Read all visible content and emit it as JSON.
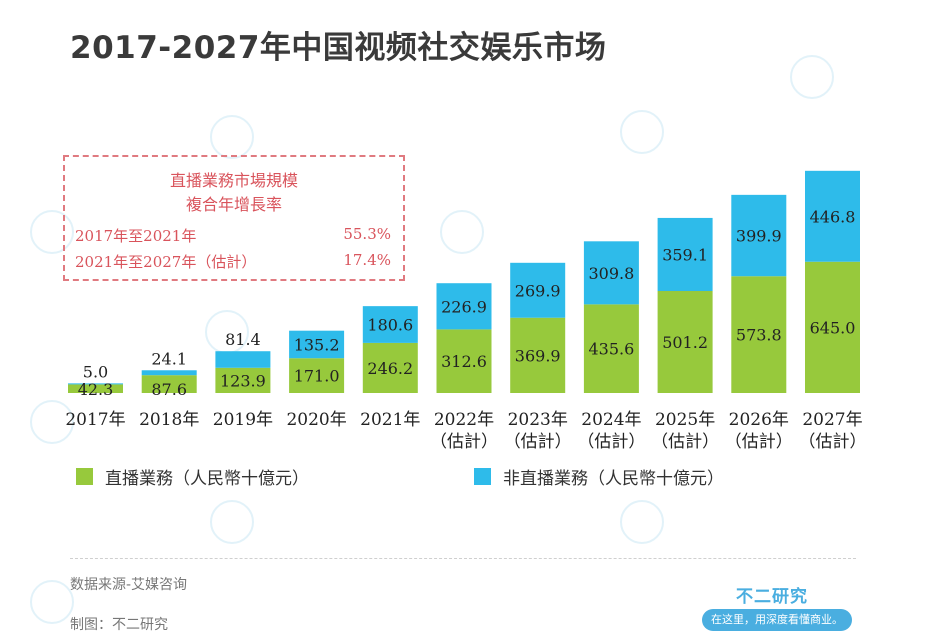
{
  "title": "2017-2027年中国视频社交娱乐市场",
  "cagr_box": {
    "title_line1": "直播業務市場規模",
    "title_line2": "複合年增長率",
    "rows": [
      {
        "label": "2017年至2021年",
        "value": "55.3%"
      },
      {
        "label": "2021年至2027年（估計）",
        "value": "17.4%"
      }
    ]
  },
  "legend": [
    {
      "label": "直播業務（人民幣十億元）",
      "color": "#97c93c"
    },
    {
      "label": "非直播業務（人民幣十億元）",
      "color": "#2ebbea"
    }
  ],
  "footer": {
    "source": "数据来源-艾媒咨询",
    "made_by": "制图：不二研究",
    "brand": "不二研究",
    "brand_slogan": "在这里，用深度看懂商业。"
  },
  "chart_data": {
    "type": "bar",
    "stacked": true,
    "title": "2017-2027年中国视频社交娱乐市场",
    "categories": [
      [
        "2017年"
      ],
      [
        "2018年"
      ],
      [
        "2019年"
      ],
      [
        "2020年"
      ],
      [
        "2021年"
      ],
      [
        "2022年",
        "（估計）"
      ],
      [
        "2023年",
        "（估計）"
      ],
      [
        "2024年",
        "（估計）"
      ],
      [
        "2025年",
        "（估計）"
      ],
      [
        "2026年",
        "（估計）"
      ],
      [
        "2027年",
        "（估計）"
      ]
    ],
    "series": [
      {
        "name": "直播業務（人民幣十億元）",
        "color": "#97c93c",
        "values": [
          42.3,
          87.6,
          123.9,
          171.0,
          246.2,
          312.6,
          369.9,
          435.6,
          501.2,
          573.8,
          645.0
        ]
      },
      {
        "name": "非直播業務（人民幣十億元）",
        "color": "#2ebbea",
        "values": [
          5.0,
          24.1,
          81.4,
          135.2,
          180.6,
          226.9,
          269.9,
          309.8,
          359.1,
          399.9,
          446.8
        ]
      }
    ],
    "value_labels": [
      [
        "42.3",
        "87.6",
        "123.9",
        "171.0",
        "246.2",
        "312.6",
        "369.9",
        "435.6",
        "501.2",
        "573.8",
        "645.0"
      ],
      [
        "5.0",
        "24.1",
        "81.4",
        "135.2",
        "180.6",
        "226.9",
        "269.9",
        "309.8",
        "359.1",
        "399.9",
        "446.8"
      ]
    ],
    "ylim": [
      0,
      1100
    ],
    "legend_position": "bottom",
    "grid": false
  }
}
